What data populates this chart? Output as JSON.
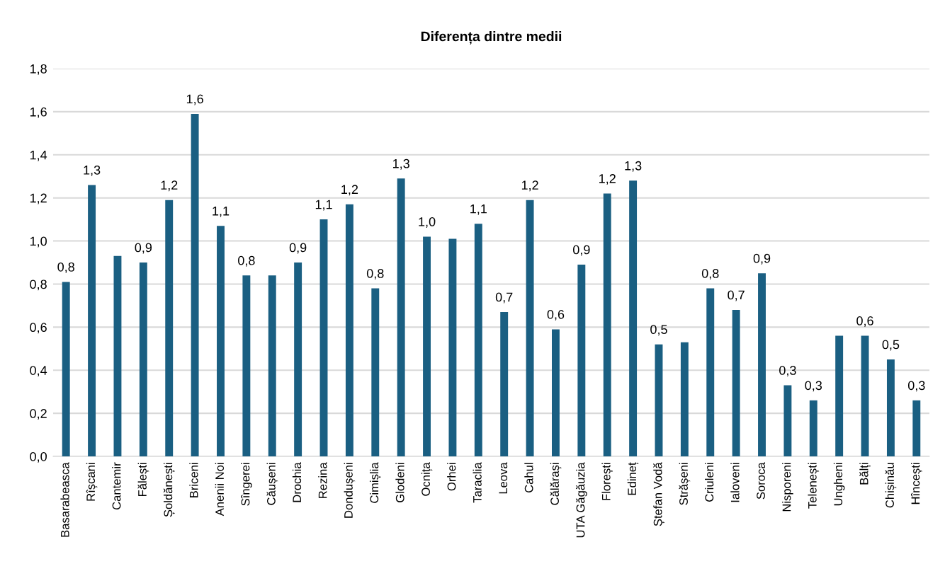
{
  "chart_data": {
    "type": "bar",
    "title": "Diferența dintre medii",
    "categories": [
      "Basarabeasca",
      "Rîșcani",
      "Cantemir",
      "Fălești",
      "Șoldănești",
      "Briceni",
      "Anenii Noi",
      "Sîngerei",
      "Căușeni",
      "Drochia",
      "Rezina",
      "Dondușeni",
      "Cimișlia",
      "Glodeni",
      "Ocnița",
      "Orhei",
      "Taraclia",
      "Leova",
      "Cahul",
      "Călărași",
      "UTA Găgăuzia",
      "Florești",
      "Edineț",
      "Ștefan Vodă",
      "Strășeni",
      "Criuleni",
      "Ialoveni",
      "Soroca",
      "Nisporeni",
      "Telenești",
      "Ungheni",
      "Bălți",
      "Chișinău",
      "Hîncești"
    ],
    "values": [
      0.81,
      1.26,
      0.93,
      0.9,
      1.19,
      1.59,
      1.07,
      0.84,
      0.84,
      0.9,
      1.1,
      1.17,
      0.78,
      1.29,
      1.02,
      1.01,
      1.08,
      0.67,
      1.19,
      0.59,
      0.89,
      1.22,
      1.28,
      0.52,
      0.53,
      0.78,
      0.68,
      0.85,
      0.33,
      0.26,
      0.56,
      0.56,
      0.45,
      0.26
    ],
    "value_labels": [
      "0,8",
      "1,3",
      null,
      "0,9",
      "1,2",
      "1,6",
      "1,1",
      "0,8",
      null,
      "0,9",
      "1,1",
      "1,2",
      "0,8",
      "1,3",
      "1,0",
      null,
      "1,1",
      "0,7",
      "1,2",
      "0,6",
      "0,9",
      "1,2",
      "1,3",
      "0,5",
      null,
      "0,8",
      "0,7",
      "0,9",
      "0,3",
      "0,3",
      null,
      "0,6",
      "0,5",
      "0,3"
    ],
    "color": "#1a5f82",
    "ylim": [
      0,
      1.8
    ],
    "yticks": [
      {
        "value": 0,
        "label": "0,0"
      },
      {
        "value": 0.2,
        "label": "0,2"
      },
      {
        "value": 0.4,
        "label": "0,4"
      },
      {
        "value": 0.6,
        "label": "0,6"
      },
      {
        "value": 0.8,
        "label": "0,8"
      },
      {
        "value": 1.0,
        "label": "1,0"
      },
      {
        "value": 1.2,
        "label": "1,2"
      },
      {
        "value": 1.4,
        "label": "1,4"
      },
      {
        "value": 1.6,
        "label": "1,6"
      },
      {
        "value": 1.8,
        "label": "1,8"
      }
    ],
    "grid": "y",
    "legend": false
  }
}
